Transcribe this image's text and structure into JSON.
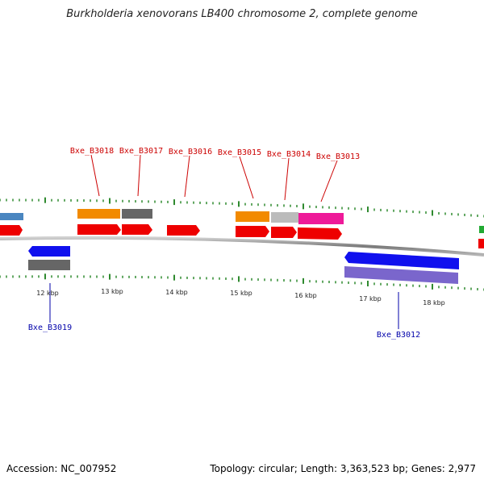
{
  "title": "Burkholderia xenovorans LB400 chromosome 2, complete genome",
  "footer": {
    "accession": "Accession: NC_007952",
    "summary": "Topology: circular; Length: 3,363,523 bp; Genes: 2,977"
  },
  "scale_labels": [
    "12 kbp",
    "13 kbp",
    "14 kbp",
    "15 kbp",
    "16 kbp",
    "17 kbp",
    "18 kbp"
  ],
  "top_gene_labels": [
    "Bxe_B3018",
    "Bxe_B3017",
    "Bxe_B3016",
    "Bxe_B3015",
    "Bxe_B3014",
    "Bxe_B3013"
  ],
  "bottom_gene_labels": [
    "Bxe_B3019",
    "Bxe_B3012"
  ],
  "colors": {
    "forward_cds": "#ee0000",
    "reverse_cds": "#1010ee",
    "orange_feature": "#f28a00",
    "dark_gray_feature": "#666666",
    "light_gray_feature": "#bbbbbb",
    "pink_feature": "#ee1a99",
    "purple_feature": "#7a66cc",
    "blue_feature": "#4a86c0",
    "green_feature": "#22aa33",
    "tick": "#2f8a2f",
    "backbone": "#888888",
    "top_label": "#cc0000",
    "bottom_label": "#0000aa"
  }
}
